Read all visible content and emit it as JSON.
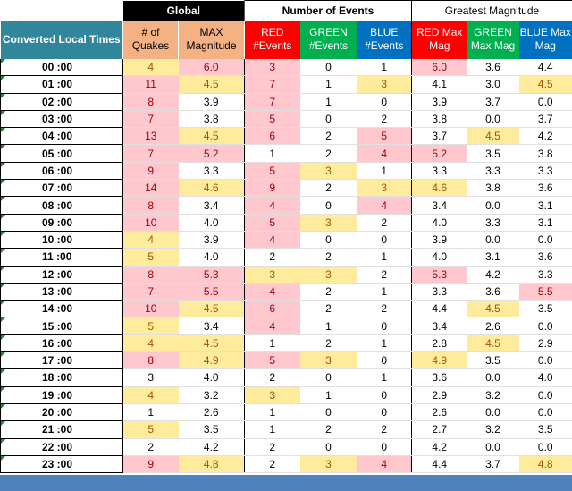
{
  "headers": {
    "global": "Global",
    "number_of_events": "Number of Events",
    "greatest_magnitude": "Greatest Magnitude",
    "converted_local_times": "Converted Local Times",
    "num_quakes": "# of Quakes",
    "max_magnitude": "MAX Magnitude",
    "red_events": "RED #Events",
    "green_events": "GREEN #Events",
    "blue_events": "BLUE #Events",
    "red_max_mag": "RED Max Mag",
    "green_max_mag": "GREEN Max Mag",
    "blue_max_mag": "BLUE Max Mag"
  },
  "colors": {
    "header_teal": "#31869b",
    "header_orange": "#f4b183",
    "header_red": "#ff0000",
    "header_green": "#00b050",
    "header_blue": "#0070c0",
    "cell_pink": "#ffc7ce",
    "cell_yellow": "#ffeb9c",
    "footer_bar": "#4f81bd"
  },
  "rows": [
    {
      "time": "00 :00",
      "quakes": "4",
      "q_c": "yellow",
      "max": "6.0",
      "m_c": "pink",
      "red": "3",
      "r_c": "pink",
      "green": "0",
      "g_c": "none",
      "blue": "1",
      "b_c": "none",
      "rmag": "6.0",
      "rm_c": "pink",
      "gmag": "3.6",
      "gm_c": "none",
      "bmag": "4.4",
      "bm_c": "none"
    },
    {
      "time": "01 :00",
      "quakes": "11",
      "q_c": "pink",
      "max": "4.5",
      "m_c": "yellow",
      "red": "7",
      "r_c": "pink",
      "green": "1",
      "g_c": "none",
      "blue": "3",
      "b_c": "yellow",
      "rmag": "4.1",
      "rm_c": "none",
      "gmag": "3.0",
      "gm_c": "none",
      "bmag": "4.5",
      "bm_c": "yellow"
    },
    {
      "time": "02 :00",
      "quakes": "8",
      "q_c": "pink",
      "max": "3.9",
      "m_c": "none",
      "red": "7",
      "r_c": "pink",
      "green": "1",
      "g_c": "none",
      "blue": "0",
      "b_c": "none",
      "rmag": "3.9",
      "rm_c": "none",
      "gmag": "3.7",
      "gm_c": "none",
      "bmag": "0.0",
      "bm_c": "none"
    },
    {
      "time": "03 :00",
      "quakes": "7",
      "q_c": "pink",
      "max": "3.8",
      "m_c": "none",
      "red": "5",
      "r_c": "pink",
      "green": "0",
      "g_c": "none",
      "blue": "2",
      "b_c": "none",
      "rmag": "3.8",
      "rm_c": "none",
      "gmag": "0.0",
      "gm_c": "none",
      "bmag": "3.7",
      "bm_c": "none"
    },
    {
      "time": "04 :00",
      "quakes": "13",
      "q_c": "pink",
      "max": "4.5",
      "m_c": "yellow",
      "red": "6",
      "r_c": "pink",
      "green": "2",
      "g_c": "none",
      "blue": "5",
      "b_c": "pink",
      "rmag": "3.7",
      "rm_c": "none",
      "gmag": "4.5",
      "gm_c": "yellow",
      "bmag": "4.2",
      "bm_c": "none"
    },
    {
      "time": "05 :00",
      "quakes": "7",
      "q_c": "pink",
      "max": "5.2",
      "m_c": "pink",
      "red": "1",
      "r_c": "none",
      "green": "2",
      "g_c": "none",
      "blue": "4",
      "b_c": "pink",
      "rmag": "5.2",
      "rm_c": "pink",
      "gmag": "3.5",
      "gm_c": "none",
      "bmag": "3.8",
      "bm_c": "none"
    },
    {
      "time": "06 :00",
      "quakes": "9",
      "q_c": "pink",
      "max": "3.3",
      "m_c": "none",
      "red": "5",
      "r_c": "pink",
      "green": "3",
      "g_c": "yellow",
      "blue": "1",
      "b_c": "none",
      "rmag": "3.3",
      "rm_c": "none",
      "gmag": "3.3",
      "gm_c": "none",
      "bmag": "3.3",
      "bm_c": "none"
    },
    {
      "time": "07 :00",
      "quakes": "14",
      "q_c": "pink",
      "max": "4.6",
      "m_c": "yellow",
      "red": "9",
      "r_c": "pink",
      "green": "2",
      "g_c": "none",
      "blue": "3",
      "b_c": "yellow",
      "rmag": "4.6",
      "rm_c": "yellow",
      "gmag": "3.8",
      "gm_c": "none",
      "bmag": "3.6",
      "bm_c": "none"
    },
    {
      "time": "08 :00",
      "quakes": "8",
      "q_c": "pink",
      "max": "3.4",
      "m_c": "none",
      "red": "4",
      "r_c": "pink",
      "green": "0",
      "g_c": "none",
      "blue": "4",
      "b_c": "pink",
      "rmag": "3.4",
      "rm_c": "none",
      "gmag": "0.0",
      "gm_c": "none",
      "bmag": "3.1",
      "bm_c": "none"
    },
    {
      "time": "09 :00",
      "quakes": "10",
      "q_c": "pink",
      "max": "4.0",
      "m_c": "none",
      "red": "5",
      "r_c": "pink",
      "green": "3",
      "g_c": "yellow",
      "blue": "2",
      "b_c": "none",
      "rmag": "4.0",
      "rm_c": "none",
      "gmag": "3.3",
      "gm_c": "none",
      "bmag": "3.1",
      "bm_c": "none"
    },
    {
      "time": "10 :00",
      "quakes": "4",
      "q_c": "yellow",
      "max": "3.9",
      "m_c": "none",
      "red": "4",
      "r_c": "pink",
      "green": "0",
      "g_c": "none",
      "blue": "0",
      "b_c": "none",
      "rmag": "3.9",
      "rm_c": "none",
      "gmag": "0.0",
      "gm_c": "none",
      "bmag": "0.0",
      "bm_c": "none"
    },
    {
      "time": "11 :00",
      "quakes": "5",
      "q_c": "yellow",
      "max": "4.0",
      "m_c": "none",
      "red": "2",
      "r_c": "none",
      "green": "2",
      "g_c": "none",
      "blue": "1",
      "b_c": "none",
      "rmag": "4.0",
      "rm_c": "none",
      "gmag": "3.1",
      "gm_c": "none",
      "bmag": "3.6",
      "bm_c": "none"
    },
    {
      "time": "12 :00",
      "quakes": "8",
      "q_c": "pink",
      "max": "5.3",
      "m_c": "pink",
      "red": "3",
      "r_c": "yellow",
      "green": "3",
      "g_c": "yellow",
      "blue": "2",
      "b_c": "none",
      "rmag": "5.3",
      "rm_c": "pink",
      "gmag": "4.2",
      "gm_c": "none",
      "bmag": "3.3",
      "bm_c": "none"
    },
    {
      "time": "13 :00",
      "quakes": "7",
      "q_c": "pink",
      "max": "5.5",
      "m_c": "pink",
      "red": "4",
      "r_c": "pink",
      "green": "2",
      "g_c": "none",
      "blue": "1",
      "b_c": "none",
      "rmag": "3.3",
      "rm_c": "none",
      "gmag": "3.6",
      "gm_c": "none",
      "bmag": "5.5",
      "bm_c": "pink"
    },
    {
      "time": "14 :00",
      "quakes": "10",
      "q_c": "pink",
      "max": "4.5",
      "m_c": "yellow",
      "red": "6",
      "r_c": "pink",
      "green": "2",
      "g_c": "none",
      "blue": "2",
      "b_c": "none",
      "rmag": "4.4",
      "rm_c": "none",
      "gmag": "4.5",
      "gm_c": "yellow",
      "bmag": "3.5",
      "bm_c": "none"
    },
    {
      "time": "15 :00",
      "quakes": "5",
      "q_c": "yellow",
      "max": "3.4",
      "m_c": "none",
      "red": "4",
      "r_c": "pink",
      "green": "1",
      "g_c": "none",
      "blue": "0",
      "b_c": "none",
      "rmag": "3.4",
      "rm_c": "none",
      "gmag": "2.6",
      "gm_c": "none",
      "bmag": "0.0",
      "bm_c": "none"
    },
    {
      "time": "16 :00",
      "quakes": "4",
      "q_c": "yellow",
      "max": "4.5",
      "m_c": "yellow",
      "red": "1",
      "r_c": "none",
      "green": "2",
      "g_c": "none",
      "blue": "1",
      "b_c": "none",
      "rmag": "2.8",
      "rm_c": "none",
      "gmag": "4.5",
      "gm_c": "yellow",
      "bmag": "2.9",
      "bm_c": "none"
    },
    {
      "time": "17 :00",
      "quakes": "8",
      "q_c": "pink",
      "max": "4.9",
      "m_c": "yellow",
      "red": "5",
      "r_c": "pink",
      "green": "3",
      "g_c": "yellow",
      "blue": "0",
      "b_c": "none",
      "rmag": "4.9",
      "rm_c": "yellow",
      "gmag": "3.5",
      "gm_c": "none",
      "bmag": "0.0",
      "bm_c": "none"
    },
    {
      "time": "18 :00",
      "quakes": "3",
      "q_c": "none",
      "max": "4.0",
      "m_c": "none",
      "red": "2",
      "r_c": "none",
      "green": "0",
      "g_c": "none",
      "blue": "1",
      "b_c": "none",
      "rmag": "3.6",
      "rm_c": "none",
      "gmag": "0.0",
      "gm_c": "none",
      "bmag": "4.0",
      "bm_c": "none"
    },
    {
      "time": "19 :00",
      "quakes": "4",
      "q_c": "yellow",
      "max": "3.2",
      "m_c": "none",
      "red": "3",
      "r_c": "yellow",
      "green": "1",
      "g_c": "none",
      "blue": "0",
      "b_c": "none",
      "rmag": "2.9",
      "rm_c": "none",
      "gmag": "3.2",
      "gm_c": "none",
      "bmag": "0.0",
      "bm_c": "none"
    },
    {
      "time": "20 :00",
      "quakes": "1",
      "q_c": "none",
      "max": "2.6",
      "m_c": "none",
      "red": "1",
      "r_c": "none",
      "green": "0",
      "g_c": "none",
      "blue": "0",
      "b_c": "none",
      "rmag": "2.6",
      "rm_c": "none",
      "gmag": "0.0",
      "gm_c": "none",
      "bmag": "0.0",
      "bm_c": "none"
    },
    {
      "time": "21 :00",
      "quakes": "5",
      "q_c": "yellow",
      "max": "3.5",
      "m_c": "none",
      "red": "1",
      "r_c": "none",
      "green": "2",
      "g_c": "none",
      "blue": "2",
      "b_c": "none",
      "rmag": "2.7",
      "rm_c": "none",
      "gmag": "3.2",
      "gm_c": "none",
      "bmag": "3.5",
      "bm_c": "none"
    },
    {
      "time": "22 :00",
      "quakes": "2",
      "q_c": "none",
      "max": "4.2",
      "m_c": "none",
      "red": "2",
      "r_c": "none",
      "green": "0",
      "g_c": "none",
      "blue": "0",
      "b_c": "none",
      "rmag": "4.2",
      "rm_c": "none",
      "gmag": "0.0",
      "gm_c": "none",
      "bmag": "0.0",
      "bm_c": "none"
    },
    {
      "time": "23 :00",
      "quakes": "9",
      "q_c": "pink",
      "max": "4.8",
      "m_c": "yellow",
      "red": "2",
      "r_c": "none",
      "green": "3",
      "g_c": "yellow",
      "blue": "4",
      "b_c": "pink",
      "rmag": "4.4",
      "rm_c": "none",
      "gmag": "3.7",
      "gm_c": "none",
      "bmag": "4.8",
      "bm_c": "yellow"
    }
  ]
}
